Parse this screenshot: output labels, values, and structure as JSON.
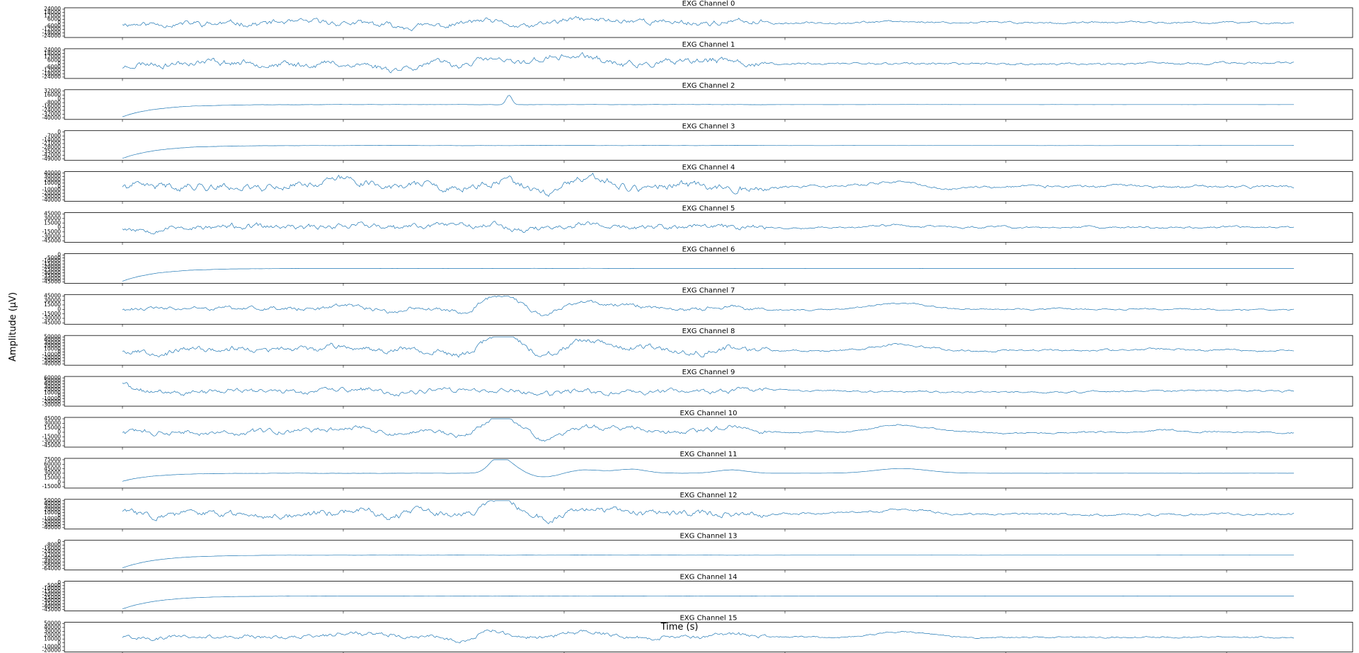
{
  "figure": {
    "ylabel": "Amplitude (µV)",
    "xlabel": "Time (s)"
  },
  "chart_data": {
    "type": "line",
    "layout": "stacked-subplots",
    "color": "#1f77b4",
    "grid": false,
    "legend": "none",
    "x_ticks": 6,
    "channels": [
      {
        "title": "EXG Channel 0",
        "ytick_labels": [
          "24000",
          "18000",
          "12000",
          "6000",
          "0",
          "-6000",
          "-12000",
          "-18000",
          "-24000"
        ],
        "ylim": [
          -24000,
          24000
        ],
        "kind": "noisy",
        "seed": 11,
        "amp": 0.14,
        "events": [
          [
            0.0,
            -0.05,
            0.18
          ],
          [
            0.229,
            -0.28,
            0.07
          ],
          [
            0.275,
            -0.22,
            0.05
          ],
          [
            0.316,
            0.35,
            0.06
          ],
          [
            0.331,
            -0.55,
            0.08
          ],
          [
            0.395,
            0.2,
            0.07
          ],
          [
            0.44,
            0.12,
            0.06
          ],
          [
            0.665,
            0.08,
            0.09
          ]
        ]
      },
      {
        "title": "EXG Channel 1",
        "ytick_labels": [
          "24000",
          "18000",
          "12000",
          "6000",
          "0",
          "-6000",
          "-12000",
          "-18000",
          "-24000"
        ],
        "ylim": [
          -24000,
          24000
        ],
        "kind": "noisy",
        "seed": 23,
        "amp": 0.16,
        "events": [
          [
            0.0,
            -0.25,
            0.03
          ],
          [
            0.229,
            -0.32,
            0.06
          ],
          [
            0.32,
            0.55,
            0.06
          ],
          [
            0.33,
            -0.5,
            0.05
          ],
          [
            0.36,
            0.3,
            0.08
          ],
          [
            0.395,
            0.4,
            0.07
          ],
          [
            0.5,
            0.2,
            0.05
          ],
          [
            0.98,
            0.1,
            0.05
          ]
        ]
      },
      {
        "title": "EXG Channel 2",
        "ytick_labels": [
          "32000",
          "16000",
          "0",
          "-8000",
          "-16000",
          "-24000",
          "-32000",
          "-40000"
        ],
        "ylim": [
          -40000,
          32000
        ],
        "kind": "decay",
        "seed": 31,
        "amp": 0.006,
        "start": -0.9,
        "tau": 0.03,
        "events": [
          [
            0.33,
            0.7,
            0.01
          ]
        ]
      },
      {
        "title": "EXG Channel 3",
        "ytick_labels": [
          "0",
          "-7000",
          "-14000",
          "-21000",
          "-28000",
          "-35000",
          "-42000",
          "-49000"
        ],
        "ylim": [
          -49000,
          0
        ],
        "kind": "decay",
        "seed": 37,
        "amp": 0.005,
        "start": -0.95,
        "tau": 0.03,
        "events": []
      },
      {
        "title": "EXG Channel 4",
        "ytick_labels": [
          "40000",
          "30000",
          "20000",
          "10000",
          "0",
          "-10000",
          "-20000",
          "-30000",
          "-40000"
        ],
        "ylim": [
          -40000,
          40000
        ],
        "kind": "noisy",
        "seed": 41,
        "amp": 0.18,
        "events": [
          [
            0.2,
            0.5,
            0.12
          ],
          [
            0.229,
            -0.45,
            0.05
          ],
          [
            0.25,
            0.35,
            0.05
          ],
          [
            0.28,
            -0.35,
            0.05
          ],
          [
            0.33,
            0.5,
            0.05
          ],
          [
            0.36,
            -0.6,
            0.06
          ],
          [
            0.395,
            0.5,
            0.07
          ],
          [
            0.665,
            0.35,
            0.09
          ],
          [
            0.7,
            -0.3,
            0.05
          ]
        ]
      },
      {
        "title": "EXG Channel 5",
        "ytick_labels": [
          "45000",
          "30000",
          "15000",
          "0",
          "-15000",
          "-30000",
          "-45000"
        ],
        "ylim": [
          -45000,
          45000
        ],
        "kind": "noisy",
        "seed": 53,
        "amp": 0.14,
        "events": [
          [
            0.2,
            0.25,
            0.12
          ],
          [
            0.229,
            -0.35,
            0.05
          ],
          [
            0.28,
            0.3,
            0.05
          ],
          [
            0.32,
            0.65,
            0.06
          ],
          [
            0.33,
            -0.5,
            0.05
          ],
          [
            0.395,
            0.3,
            0.06
          ],
          [
            0.665,
            0.15,
            0.09
          ]
        ]
      },
      {
        "title": "EXG Channel 6",
        "ytick_labels": [
          "0",
          "-5000",
          "-10000",
          "-15000",
          "-20000",
          "-25000",
          "-30000",
          "-35000",
          "-40000",
          "-45000"
        ],
        "ylim": [
          -45000,
          0
        ],
        "kind": "decay",
        "seed": 59,
        "amp": 0.004,
        "start": -0.95,
        "tau": 0.03,
        "events": []
      },
      {
        "title": "EXG Channel 7",
        "ytick_labels": [
          "45000",
          "30000",
          "15000",
          "0",
          "-15000",
          "-30000",
          "-45000"
        ],
        "ylim": [
          -45000,
          45000
        ],
        "kind": "noisy",
        "seed": 61,
        "amp": 0.1,
        "events": [
          [
            0.2,
            0.2,
            0.12
          ],
          [
            0.229,
            -0.25,
            0.04
          ],
          [
            0.29,
            -0.4,
            0.04
          ],
          [
            0.32,
            0.7,
            0.06
          ],
          [
            0.33,
            0.5,
            0.06
          ],
          [
            0.36,
            -0.55,
            0.05
          ],
          [
            0.395,
            0.55,
            0.07
          ],
          [
            0.435,
            0.3,
            0.05
          ],
          [
            0.52,
            0.3,
            0.05
          ],
          [
            0.665,
            0.45,
            0.09
          ]
        ]
      },
      {
        "title": "EXG Channel 8",
        "ytick_labels": [
          "50000",
          "40000",
          "30000",
          "20000",
          "10000",
          "0",
          "-10000",
          "-20000",
          "-30000",
          "-40000"
        ],
        "ylim": [
          -40000,
          50000
        ],
        "kind": "noisy",
        "seed": 67,
        "amp": 0.14,
        "events": [
          [
            0.2,
            0.35,
            0.12
          ],
          [
            0.29,
            -0.35,
            0.04
          ],
          [
            0.32,
            0.7,
            0.06
          ],
          [
            0.33,
            0.45,
            0.06
          ],
          [
            0.36,
            -0.55,
            0.05
          ],
          [
            0.395,
            0.5,
            0.07
          ],
          [
            0.52,
            0.35,
            0.05
          ],
          [
            0.665,
            0.45,
            0.09
          ],
          [
            0.89,
            0.15,
            0.05
          ]
        ]
      },
      {
        "title": "EXG Channel 9",
        "ytick_labels": [
          "60000",
          "50000",
          "40000",
          "30000",
          "20000",
          "10000",
          "0",
          "-10000",
          "-20000",
          "-30000"
        ],
        "ylim": [
          -30000,
          60000
        ],
        "kind": "noisy",
        "seed": 71,
        "amp": 0.12,
        "events": [
          [
            0.0,
            0.65,
            0.02
          ],
          [
            0.229,
            -0.35,
            0.05
          ],
          [
            0.2,
            0.2,
            0.12
          ],
          [
            0.33,
            0.1,
            0.06
          ],
          [
            0.36,
            -0.25,
            0.05
          ]
        ]
      },
      {
        "title": "EXG Channel 10",
        "ytick_labels": [
          "45000",
          "30000",
          "15000",
          "0",
          "-15000",
          "-30000",
          "-45000"
        ],
        "ylim": [
          -45000,
          45000
        ],
        "kind": "noisy",
        "seed": 73,
        "amp": 0.12,
        "events": [
          [
            0.2,
            0.25,
            0.12
          ],
          [
            0.229,
            -0.25,
            0.04
          ],
          [
            0.29,
            -0.45,
            0.04
          ],
          [
            0.32,
            0.7,
            0.06
          ],
          [
            0.33,
            0.5,
            0.06
          ],
          [
            0.36,
            -0.55,
            0.05
          ],
          [
            0.395,
            0.55,
            0.07
          ],
          [
            0.435,
            0.3,
            0.05
          ],
          [
            0.52,
            0.4,
            0.05
          ],
          [
            0.665,
            0.55,
            0.09
          ],
          [
            0.89,
            0.2,
            0.05
          ]
        ]
      },
      {
        "title": "EXG Channel 11",
        "ytick_labels": [
          "75000",
          "60000",
          "45000",
          "30000",
          "15000",
          "0",
          "-15000"
        ],
        "ylim": [
          -15000,
          75000
        ],
        "kind": "decay",
        "seed": 79,
        "amp": 0.006,
        "start": -0.6,
        "tau": 0.025,
        "events": [
          [
            0.32,
            0.85,
            0.03
          ],
          [
            0.33,
            0.6,
            0.04
          ],
          [
            0.36,
            -0.3,
            0.05
          ],
          [
            0.395,
            0.25,
            0.06
          ],
          [
            0.435,
            0.3,
            0.05
          ],
          [
            0.52,
            0.25,
            0.05
          ],
          [
            0.665,
            0.35,
            0.09
          ]
        ]
      },
      {
        "title": "EXG Channel 12",
        "ytick_labels": [
          "50000",
          "40000",
          "30000",
          "20000",
          "10000",
          "0",
          "-10000",
          "-20000",
          "-30000",
          "-40000"
        ],
        "ylim": [
          -40000,
          50000
        ],
        "kind": "noisy",
        "seed": 83,
        "amp": 0.16,
        "events": [
          [
            0.0,
            0.25,
            0.03
          ],
          [
            0.2,
            0.4,
            0.12
          ],
          [
            0.229,
            -0.45,
            0.05
          ],
          [
            0.25,
            0.3,
            0.05
          ],
          [
            0.32,
            0.65,
            0.06
          ],
          [
            0.33,
            0.4,
            0.06
          ],
          [
            0.36,
            -0.55,
            0.05
          ],
          [
            0.395,
            0.45,
            0.07
          ],
          [
            0.665,
            0.4,
            0.09
          ]
        ]
      },
      {
        "title": "EXG Channel 13",
        "ytick_labels": [
          "0",
          "-8000",
          "-16000",
          "-24000",
          "-32000",
          "-40000",
          "-48000",
          "-56000",
          "-64000"
        ],
        "ylim": [
          -64000,
          0
        ],
        "kind": "decay",
        "seed": 89,
        "amp": 0.004,
        "start": -0.95,
        "tau": 0.03,
        "events": []
      },
      {
        "title": "EXG Channel 14",
        "ytick_labels": [
          "0",
          "-5000",
          "-10000",
          "-15000",
          "-20000",
          "-25000",
          "-30000",
          "-35000",
          "-40000",
          "-45000"
        ],
        "ylim": [
          -45000,
          0
        ],
        "kind": "decay",
        "seed": 97,
        "amp": 0.004,
        "start": -0.95,
        "tau": 0.03,
        "events": []
      },
      {
        "title": "EXG Channel 15",
        "ytick_labels": [
          "50000",
          "40000",
          "30000",
          "20000",
          "10000",
          "0",
          "-10000",
          "-20000"
        ],
        "ylim": [
          -20000,
          50000
        ],
        "kind": "noisy",
        "seed": 101,
        "amp": 0.1,
        "events": [
          [
            0.2,
            0.25,
            0.12
          ],
          [
            0.29,
            -0.35,
            0.04
          ],
          [
            0.32,
            0.8,
            0.06
          ],
          [
            0.33,
            -0.5,
            0.05
          ],
          [
            0.395,
            0.35,
            0.07
          ],
          [
            0.52,
            0.25,
            0.05
          ],
          [
            0.665,
            0.4,
            0.09
          ]
        ]
      }
    ]
  }
}
